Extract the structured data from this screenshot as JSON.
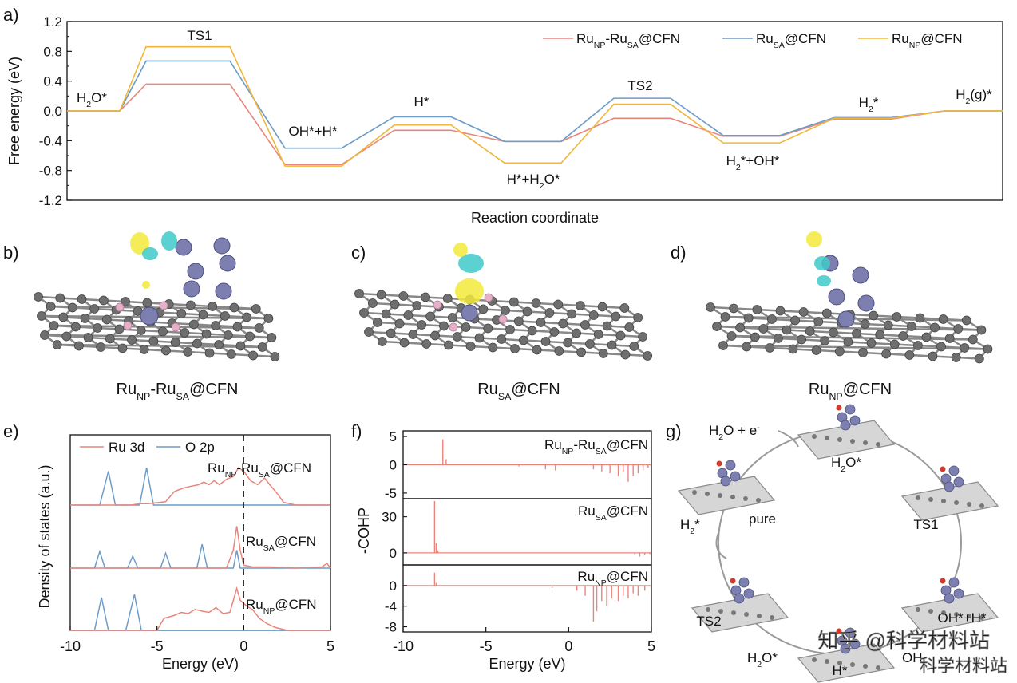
{
  "panel_labels": {
    "a": "a)",
    "b": "b)",
    "c": "c)",
    "d": "d)",
    "e": "e)",
    "f": "f)",
    "g": "g)"
  },
  "colors": {
    "RuNP_RuSA": "#e8867c",
    "RuSA": "#6d9cc8",
    "RuNP": "#f0b73c",
    "Ru3d": "#e8867c",
    "O2p": "#6d9cc8",
    "carbon": "#6e6e6e",
    "nitrogen": "#e6b1c8",
    "ruthenium": "#7d7fb0",
    "iso_yellow": "#f2ea3a",
    "iso_cyan": "#3fc9c9"
  },
  "structures": {
    "b": {
      "caption_main": "Ru",
      "sub1": "NP",
      "mid": "-Ru",
      "sub2": "SA",
      "tail": "@CFN"
    },
    "c": {
      "caption_main": "Ru",
      "sub1": "SA",
      "tail": "@CFN"
    },
    "d": {
      "caption_main": "Ru",
      "sub1": "NP",
      "tail": "@CFN"
    }
  },
  "chart_data": [
    {
      "id": "a",
      "type": "line",
      "xlabel": "Reaction coordinate",
      "ylabel": "Free energy (eV)",
      "ylim": [
        -1.2,
        1.2
      ],
      "yticks": [
        "1.2",
        "0.8",
        "0.4",
        "0.0",
        "-0.4",
        "-0.8",
        "-1.2"
      ],
      "states": [
        "H2O*",
        "TS1",
        "OH*+H*",
        "H*",
        "H*+H2O*",
        "TS2",
        "H2*+OH*",
        "H2*",
        "H2(g)*"
      ],
      "state_labels": [
        {
          "main": "H",
          "sub": "2",
          "tail": "O*"
        },
        {
          "main": "TS1",
          "sub": "",
          "tail": ""
        },
        {
          "main": "OH*+H*",
          "sub": "",
          "tail": ""
        },
        {
          "main": "H*",
          "sub": "",
          "tail": ""
        },
        {
          "main": "H*+H",
          "sub": "2",
          "tail": "O*"
        },
        {
          "main": "TS2",
          "sub": "",
          "tail": ""
        },
        {
          "main": "H",
          "sub": "2",
          "tail": "*+OH*"
        },
        {
          "main": "H",
          "sub": "2",
          "tail": "*"
        },
        {
          "main": "H",
          "sub": "2",
          "tail": "(g)*"
        }
      ],
      "series": [
        {
          "name": "RuNP-RuSA@CFN",
          "legend": {
            "a": "Ru",
            "s1": "NP",
            "b": "-Ru",
            "s2": "SA",
            "c": "@CFN"
          },
          "values": [
            0.0,
            0.36,
            -0.72,
            -0.26,
            -0.41,
            -0.1,
            -0.34,
            -0.11,
            0.0
          ]
        },
        {
          "name": "RuSA@CFN",
          "legend": {
            "a": "Ru",
            "s1": "SA",
            "b": "@CFN",
            "s2": "",
            "c": ""
          },
          "values": [
            0.0,
            0.67,
            -0.5,
            -0.08,
            -0.41,
            0.17,
            -0.33,
            -0.09,
            0.0
          ]
        },
        {
          "name": "RuNP@CFN",
          "legend": {
            "a": "Ru",
            "s1": "NP",
            "b": "@CFN",
            "s2": "",
            "c": ""
          },
          "values": [
            0.0,
            0.86,
            -0.74,
            -0.19,
            -0.7,
            0.09,
            -0.43,
            -0.1,
            0.0
          ]
        }
      ]
    },
    {
      "id": "e",
      "type": "line",
      "xlabel": "Energy (eV)",
      "ylabel": "Density of states (a.u.)",
      "xlim": [
        -10,
        5
      ],
      "xticks": [
        "-10",
        "-5",
        "0",
        "5"
      ],
      "legend": [
        "Ru 3d",
        "O 2p"
      ],
      "panels": [
        {
          "label": {
            "a": "Ru",
            "s1": "NP",
            "b": "-Ru",
            "s2": "SA",
            "c": "@CFN"
          },
          "Ru3d": [
            [
              -10,
              0
            ],
            [
              -6.5,
              0
            ],
            [
              -6.0,
              0.02
            ],
            [
              -5.5,
              0.02
            ],
            [
              -4.5,
              0.05
            ],
            [
              -4.0,
              0.2
            ],
            [
              -3.5,
              0.25
            ],
            [
              -3.0,
              0.28
            ],
            [
              -2.6,
              0.3
            ],
            [
              -2.3,
              0.34
            ],
            [
              -2.0,
              0.3
            ],
            [
              -1.7,
              0.36
            ],
            [
              -1.4,
              0.3
            ],
            [
              -1.0,
              0.38
            ],
            [
              -0.6,
              0.42
            ],
            [
              -0.3,
              0.55
            ],
            [
              0.0,
              0.5
            ],
            [
              0.4,
              0.36
            ],
            [
              0.8,
              0.3
            ],
            [
              1.2,
              0.4
            ],
            [
              1.5,
              0.3
            ],
            [
              1.9,
              0.18
            ],
            [
              2.3,
              0.04
            ],
            [
              3,
              0
            ],
            [
              5,
              0
            ]
          ],
          "O2p": [
            [
              -10,
              0
            ],
            [
              -8.3,
              0
            ],
            [
              -7.8,
              0.5
            ],
            [
              -7.4,
              0
            ],
            [
              -6.0,
              0
            ],
            [
              -5.6,
              0.55
            ],
            [
              -5.2,
              0
            ],
            [
              5,
              0
            ]
          ]
        },
        {
          "label": {
            "a": "Ru",
            "s1": "SA",
            "b": "@CFN",
            "s2": "",
            "c": ""
          },
          "Ru3d": [
            [
              -10,
              0
            ],
            [
              -1.0,
              0
            ],
            [
              -0.6,
              0.3
            ],
            [
              -0.4,
              0.7
            ],
            [
              -0.2,
              0.3
            ],
            [
              0.0,
              0.05
            ],
            [
              0.5,
              0.02
            ],
            [
              1.5,
              0.02
            ],
            [
              3,
              0
            ],
            [
              4.5,
              0.02
            ],
            [
              4.8,
              0.08
            ],
            [
              5,
              0
            ]
          ],
          "O2p": [
            [
              -10,
              0
            ],
            [
              -8.6,
              0
            ],
            [
              -8.3,
              0.28
            ],
            [
              -8.0,
              0
            ],
            [
              -6.7,
              0
            ],
            [
              -6.4,
              0.2
            ],
            [
              -6.1,
              0
            ],
            [
              -4.8,
              0
            ],
            [
              -4.5,
              0.25
            ],
            [
              -4.2,
              0
            ],
            [
              -2.7,
              0
            ],
            [
              -2.4,
              0.4
            ],
            [
              -2.1,
              0
            ],
            [
              -0.6,
              0
            ],
            [
              -0.4,
              0.3
            ],
            [
              -0.2,
              0
            ],
            [
              5,
              0
            ]
          ]
        },
        {
          "label": {
            "a": "Ru",
            "s1": "NP",
            "b": "@CFN",
            "s2": "",
            "c": ""
          },
          "Ru3d": [
            [
              -10,
              0
            ],
            [
              -5.0,
              0
            ],
            [
              -4.6,
              0.2
            ],
            [
              -4.0,
              0.25
            ],
            [
              -3.6,
              0.3
            ],
            [
              -3.2,
              0.28
            ],
            [
              -2.8,
              0.35
            ],
            [
              -2.4,
              0.32
            ],
            [
              -2.0,
              0.3
            ],
            [
              -1.6,
              0.38
            ],
            [
              -1.2,
              0.28
            ],
            [
              -0.8,
              0.3
            ],
            [
              -0.4,
              0.7
            ],
            [
              -0.2,
              0.5
            ],
            [
              0.2,
              0.4
            ],
            [
              0.5,
              0.35
            ],
            [
              0.9,
              0.2
            ],
            [
              1.3,
              0.12
            ],
            [
              1.8,
              0.05
            ],
            [
              2.5,
              0
            ],
            [
              5,
              0
            ]
          ],
          "O2p": [
            [
              -10,
              0
            ],
            [
              -8.6,
              0
            ],
            [
              -8.2,
              0.55
            ],
            [
              -7.8,
              0
            ],
            [
              -6.8,
              0
            ],
            [
              -6.3,
              0.6
            ],
            [
              -5.9,
              0
            ],
            [
              5,
              0
            ]
          ]
        }
      ]
    },
    {
      "id": "f",
      "type": "line",
      "xlabel": "Energy (eV)",
      "ylabel": "-COHP",
      "xlim": [
        -10,
        5
      ],
      "xticks": [
        "-10",
        "-5",
        "0",
        "5"
      ],
      "panels": [
        {
          "label": {
            "a": "Ru",
            "s1": "NP",
            "b": "-Ru",
            "s2": "SA",
            "c": "@CFN"
          },
          "yticks": [
            "5",
            "0",
            "-5"
          ],
          "ylim": [
            -6,
            6
          ],
          "spikes": [
            [
              -7.6,
              4.5
            ],
            [
              -7.4,
              1.0
            ],
            [
              -3.0,
              -0.3
            ],
            [
              -1.4,
              -0.8
            ],
            [
              -0.8,
              -1.0
            ],
            [
              1.5,
              -0.8
            ],
            [
              2.0,
              -1.2
            ],
            [
              2.5,
              -1.5
            ],
            [
              3.0,
              -2.0
            ],
            [
              3.3,
              -1.2
            ],
            [
              3.6,
              -3.0
            ],
            [
              3.9,
              -2.0
            ],
            [
              4.2,
              -1.5
            ],
            [
              4.5,
              -1.0
            ],
            [
              4.8,
              -0.5
            ]
          ]
        },
        {
          "label": {
            "a": "Ru",
            "s1": "SA",
            "b": "@CFN",
            "s2": "",
            "c": ""
          },
          "yticks": [
            "30",
            "0"
          ],
          "ylim": [
            -10,
            45
          ],
          "spikes": [
            [
              -8.1,
              43
            ],
            [
              -8.0,
              8
            ],
            [
              -7.9,
              2
            ],
            [
              4.0,
              -2
            ],
            [
              4.3,
              -3
            ],
            [
              4.6,
              -2
            ],
            [
              4.9,
              -1
            ]
          ]
        },
        {
          "label": {
            "a": "Ru",
            "s1": "NP",
            "b": "@CFN",
            "s2": "",
            "c": ""
          },
          "yticks": [
            "0",
            "-4",
            "-8"
          ],
          "ylim": [
            -9,
            4
          ],
          "spikes": [
            [
              -8.1,
              2.5
            ],
            [
              -8.0,
              0.5
            ],
            [
              -1.0,
              -0.5
            ],
            [
              0.5,
              -1.0
            ],
            [
              1.0,
              -2.0
            ],
            [
              1.5,
              -7.0
            ],
            [
              1.7,
              -5.0
            ],
            [
              2.0,
              -3.0
            ],
            [
              2.3,
              -4.0
            ],
            [
              2.6,
              -2.5
            ],
            [
              3.0,
              -3.0
            ],
            [
              3.3,
              -2.0
            ],
            [
              3.6,
              -2.5
            ],
            [
              3.9,
              -1.5
            ],
            [
              4.2,
              -2.0
            ],
            [
              4.6,
              -1.0
            ]
          ]
        }
      ]
    }
  ],
  "cycle": {
    "nodes": [
      {
        "key": "h2o",
        "main": "H",
        "sub": "2",
        "tail": "O*"
      },
      {
        "key": "ts1",
        "main": "TS1",
        "sub": "",
        "tail": ""
      },
      {
        "key": "ohh",
        "main": "OH*+H*",
        "sub": "",
        "tail": ""
      },
      {
        "key": "hbot",
        "main": "H*",
        "sub": "",
        "tail": ""
      },
      {
        "key": "ts2",
        "main": "TS2",
        "sub": "",
        "tail": ""
      },
      {
        "key": "pure",
        "main": "pure",
        "sub": "",
        "tail": ""
      }
    ],
    "input": {
      "main": "H",
      "sub": "2",
      "tail": "O + e",
      "sup": "-"
    },
    "output": {
      "main": "H",
      "sub": "2",
      "tail": "*",
      "sup": ""
    },
    "bottom_left": {
      "main": "H",
      "sub": "2",
      "tail": "O*"
    },
    "bottom_right": {
      "main": "OH",
      "sub": "",
      "tail": ""
    }
  },
  "watermark": {
    "line1": "知乎 @科学材料站",
    "line2": "科学材料站"
  }
}
